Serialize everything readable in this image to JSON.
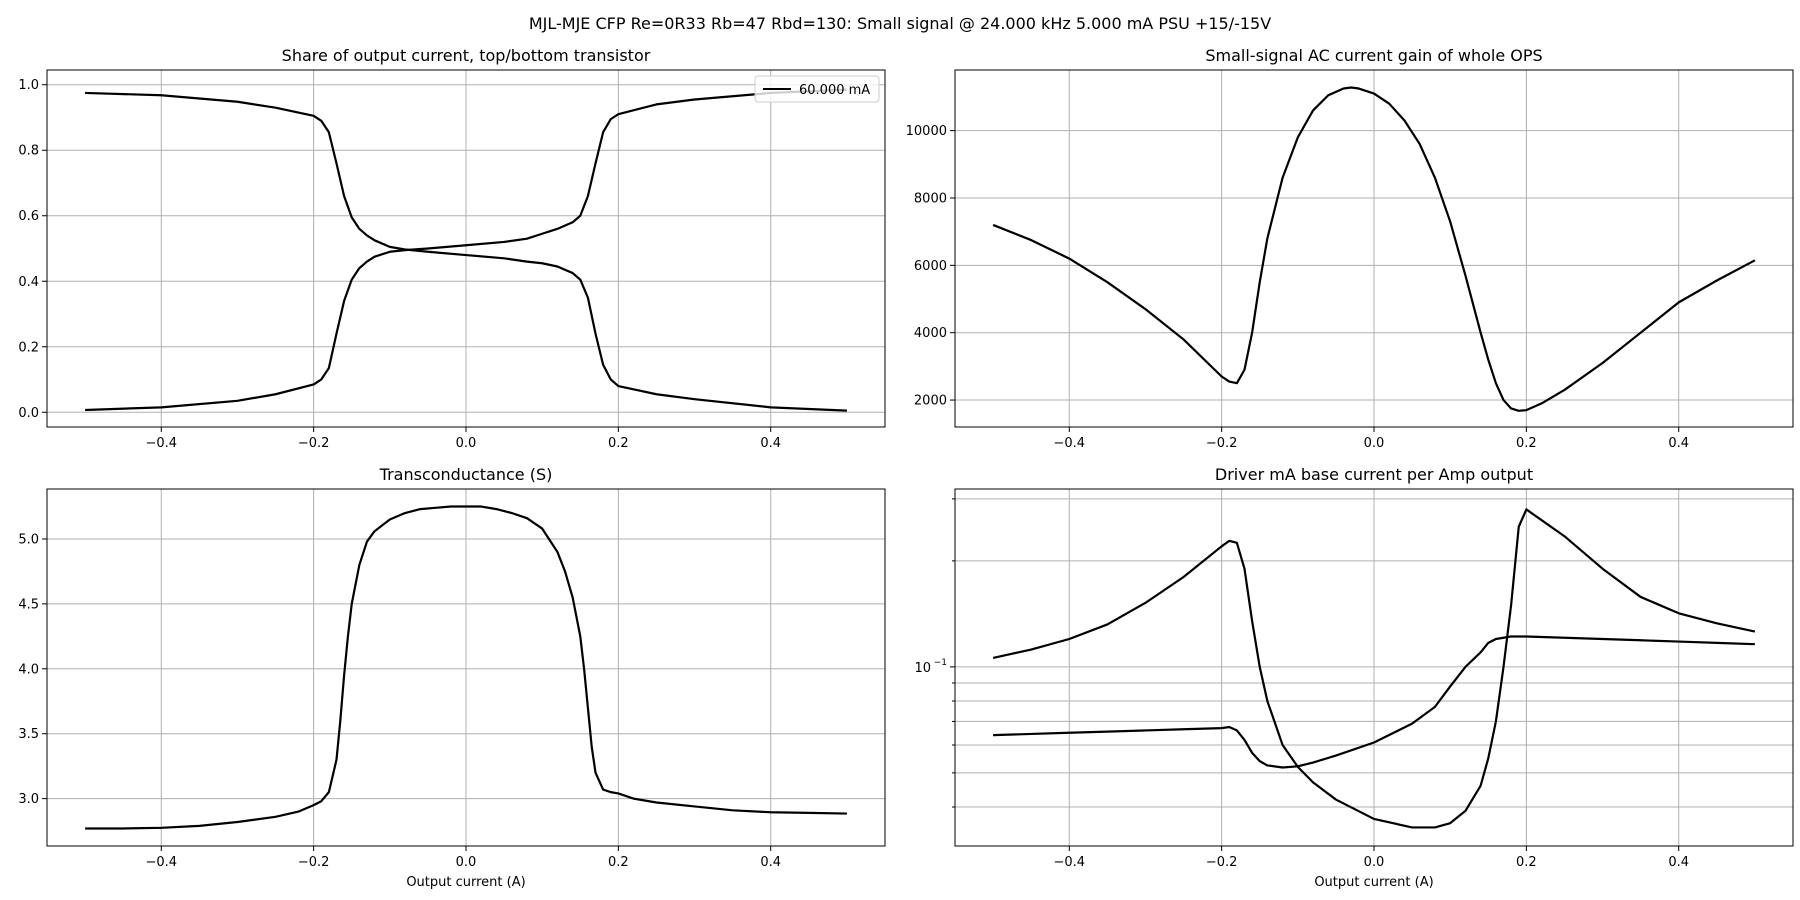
{
  "figure": {
    "title": "MJL-MJE CFP Re=0R33 Rb=47 Rbd=130: Small signal @ 24.000 kHz 5.000 mA PSU +15/-15V"
  },
  "colors": {
    "line": "#000000",
    "grid": "#b0b0b0",
    "axes": "#000000",
    "background": "#ffffff"
  },
  "chart_data": [
    {
      "type": "line",
      "title": "Share of output current, top/bottom transistor",
      "xlabel": "",
      "ylabel": "",
      "xlim": [
        -0.55,
        0.55
      ],
      "ylim": [
        -0.045,
        1.045
      ],
      "xticks": [
        -0.4,
        -0.2,
        0.0,
        0.2,
        0.4
      ],
      "xtick_labels": [
        "−0.4",
        "−0.2",
        "0.0",
        "0.2",
        "0.4"
      ],
      "yticks": [
        0.0,
        0.2,
        0.4,
        0.6,
        0.8,
        1.0
      ],
      "ytick_labels": [
        "0.0",
        "0.2",
        "0.4",
        "0.6",
        "0.8",
        "1.0"
      ],
      "grid": true,
      "legend": {
        "position": "top-right",
        "entries": [
          "60.000 mA"
        ]
      },
      "series": [
        {
          "name": "60.000 mA",
          "x": [
            -0.5,
            -0.4,
            -0.3,
            -0.25,
            -0.2,
            -0.19,
            -0.18,
            -0.17,
            -0.16,
            -0.15,
            -0.14,
            -0.13,
            -0.12,
            -0.1,
            -0.08,
            -0.05,
            0.0,
            0.05,
            0.08,
            0.1,
            0.12,
            0.14,
            0.15,
            0.16,
            0.17,
            0.18,
            0.19,
            0.2,
            0.25,
            0.3,
            0.4,
            0.5
          ],
          "y": [
            0.975,
            0.968,
            0.948,
            0.93,
            0.905,
            0.89,
            0.855,
            0.76,
            0.66,
            0.595,
            0.56,
            0.54,
            0.525,
            0.505,
            0.497,
            0.49,
            0.48,
            0.47,
            0.46,
            0.455,
            0.445,
            0.425,
            0.405,
            0.35,
            0.24,
            0.145,
            0.1,
            0.08,
            0.055,
            0.04,
            0.015,
            0.005
          ]
        },
        {
          "name": "",
          "x": [
            -0.5,
            -0.4,
            -0.3,
            -0.25,
            -0.2,
            -0.19,
            -0.18,
            -0.17,
            -0.16,
            -0.15,
            -0.14,
            -0.13,
            -0.12,
            -0.1,
            -0.08,
            -0.05,
            0.0,
            0.05,
            0.08,
            0.1,
            0.12,
            0.14,
            0.15,
            0.16,
            0.17,
            0.18,
            0.19,
            0.2,
            0.25,
            0.3,
            0.4,
            0.5
          ],
          "y": [
            0.007,
            0.015,
            0.035,
            0.055,
            0.085,
            0.1,
            0.135,
            0.24,
            0.34,
            0.405,
            0.44,
            0.46,
            0.475,
            0.49,
            0.495,
            0.5,
            0.51,
            0.52,
            0.53,
            0.545,
            0.56,
            0.58,
            0.6,
            0.66,
            0.76,
            0.855,
            0.895,
            0.91,
            0.94,
            0.955,
            0.975,
            0.985
          ]
        }
      ]
    },
    {
      "type": "line",
      "title": "Small-signal AC current gain of whole OPS",
      "xlabel": "",
      "ylabel": "",
      "xlim": [
        -0.55,
        0.55
      ],
      "ylim": [
        1200,
        11800
      ],
      "xticks": [
        -0.4,
        -0.2,
        0.0,
        0.2,
        0.4
      ],
      "xtick_labels": [
        "−0.4",
        "−0.2",
        "0.0",
        "0.2",
        "0.4"
      ],
      "yticks": [
        2000,
        4000,
        6000,
        8000,
        10000
      ],
      "ytick_labels": [
        "2000",
        "4000",
        "6000",
        "8000",
        "10000"
      ],
      "grid": true,
      "series": [
        {
          "name": "",
          "x": [
            -0.5,
            -0.45,
            -0.4,
            -0.35,
            -0.3,
            -0.25,
            -0.2,
            -0.19,
            -0.18,
            -0.17,
            -0.16,
            -0.15,
            -0.14,
            -0.12,
            -0.1,
            -0.08,
            -0.06,
            -0.04,
            -0.03,
            -0.02,
            0.0,
            0.02,
            0.04,
            0.06,
            0.08,
            0.1,
            0.12,
            0.14,
            0.15,
            0.16,
            0.17,
            0.18,
            0.19,
            0.2,
            0.22,
            0.25,
            0.3,
            0.35,
            0.4,
            0.45,
            0.5
          ],
          "y": [
            7200,
            6750,
            6200,
            5500,
            4700,
            3800,
            2700,
            2550,
            2500,
            2900,
            4000,
            5500,
            6800,
            8600,
            9800,
            10600,
            11050,
            11250,
            11280,
            11250,
            11100,
            10800,
            10300,
            9600,
            8600,
            7300,
            5700,
            4000,
            3200,
            2500,
            2000,
            1750,
            1680,
            1700,
            1900,
            2300,
            3100,
            4000,
            4900,
            5550,
            6150
          ]
        }
      ]
    },
    {
      "type": "line",
      "title": "Transconductance (S)",
      "xlabel": "Output current (A)",
      "ylabel": "",
      "xlim": [
        -0.55,
        0.55
      ],
      "ylim": [
        2.635,
        5.385
      ],
      "xticks": [
        -0.4,
        -0.2,
        0.0,
        0.2,
        0.4
      ],
      "xtick_labels": [
        "−0.4",
        "−0.2",
        "0.0",
        "0.2",
        "0.4"
      ],
      "yticks": [
        3.0,
        3.5,
        4.0,
        4.5,
        5.0
      ],
      "ytick_labels": [
        "3.0",
        "3.5",
        "4.0",
        "4.5",
        "5.0"
      ],
      "grid": true,
      "series": [
        {
          "name": "",
          "x": [
            -0.5,
            -0.45,
            -0.4,
            -0.35,
            -0.3,
            -0.25,
            -0.22,
            -0.2,
            -0.19,
            -0.18,
            -0.17,
            -0.165,
            -0.16,
            -0.155,
            -0.15,
            -0.14,
            -0.13,
            -0.12,
            -0.1,
            -0.08,
            -0.06,
            -0.04,
            -0.02,
            0.0,
            0.02,
            0.04,
            0.06,
            0.08,
            0.1,
            0.12,
            0.13,
            0.14,
            0.15,
            0.155,
            0.16,
            0.165,
            0.17,
            0.18,
            0.19,
            0.2,
            0.22,
            0.25,
            0.3,
            0.35,
            0.4,
            0.45,
            0.5
          ],
          "y": [
            2.77,
            2.77,
            2.775,
            2.79,
            2.82,
            2.86,
            2.9,
            2.95,
            2.98,
            3.05,
            3.3,
            3.6,
            3.95,
            4.25,
            4.5,
            4.8,
            4.98,
            5.06,
            5.15,
            5.2,
            5.23,
            5.24,
            5.25,
            5.25,
            5.25,
            5.23,
            5.2,
            5.16,
            5.08,
            4.9,
            4.75,
            4.55,
            4.25,
            4.0,
            3.7,
            3.4,
            3.2,
            3.07,
            3.05,
            3.04,
            3.0,
            2.97,
            2.94,
            2.91,
            2.895,
            2.89,
            2.885
          ]
        }
      ]
    },
    {
      "type": "line",
      "title": "Driver mA base current per Amp output",
      "xlabel": "Output current (A)",
      "ylabel": "",
      "yscale": "log",
      "xlim": [
        -0.55,
        0.55
      ],
      "ylim": [
        0.031,
        0.32
      ],
      "xticks": [
        -0.4,
        -0.2,
        0.0,
        0.2,
        0.4
      ],
      "xtick_labels": [
        "−0.4",
        "−0.2",
        "0.0",
        "0.2",
        "0.4"
      ],
      "yticks": [
        0.1
      ],
      "ytick_labels": [
        "10",
        "−1"
      ],
      "yminor": [
        0.04,
        0.05,
        0.06,
        0.07,
        0.08,
        0.09,
        0.2,
        0.3
      ],
      "grid": true,
      "series": [
        {
          "name": "",
          "x": [
            -0.5,
            -0.45,
            -0.4,
            -0.35,
            -0.3,
            -0.25,
            -0.2,
            -0.19,
            -0.18,
            -0.17,
            -0.16,
            -0.15,
            -0.14,
            -0.12,
            -0.1,
            -0.08,
            -0.05,
            0.0,
            0.05,
            0.08,
            0.1,
            0.12,
            0.14,
            0.15,
            0.16,
            0.17,
            0.18,
            0.19,
            0.2,
            0.25,
            0.3,
            0.35,
            0.4,
            0.45,
            0.5
          ],
          "y": [
            0.106,
            0.112,
            0.12,
            0.132,
            0.152,
            0.18,
            0.22,
            0.228,
            0.225,
            0.19,
            0.135,
            0.1,
            0.08,
            0.06,
            0.052,
            0.047,
            0.042,
            0.037,
            0.035,
            0.035,
            0.036,
            0.039,
            0.046,
            0.055,
            0.07,
            0.1,
            0.15,
            0.25,
            0.28,
            0.235,
            0.19,
            0.158,
            0.142,
            0.133,
            0.126
          ]
        },
        {
          "name": "",
          "x": [
            -0.5,
            -0.45,
            -0.4,
            -0.35,
            -0.3,
            -0.25,
            -0.2,
            -0.19,
            -0.18,
            -0.17,
            -0.16,
            -0.15,
            -0.14,
            -0.12,
            -0.1,
            -0.08,
            -0.05,
            0.0,
            0.05,
            0.08,
            0.1,
            0.12,
            0.14,
            0.15,
            0.16,
            0.17,
            0.18,
            0.19,
            0.2,
            0.25,
            0.3,
            0.35,
            0.4,
            0.45,
            0.5
          ],
          "y": [
            0.064,
            0.0645,
            0.065,
            0.0655,
            0.066,
            0.0665,
            0.067,
            0.0675,
            0.066,
            0.062,
            0.057,
            0.054,
            0.0525,
            0.0518,
            0.0522,
            0.0535,
            0.056,
            0.061,
            0.069,
            0.077,
            0.088,
            0.1,
            0.11,
            0.117,
            0.12,
            0.121,
            0.122,
            0.122,
            0.122,
            0.121,
            0.12,
            0.119,
            0.118,
            0.117,
            0.116
          ]
        }
      ]
    }
  ]
}
